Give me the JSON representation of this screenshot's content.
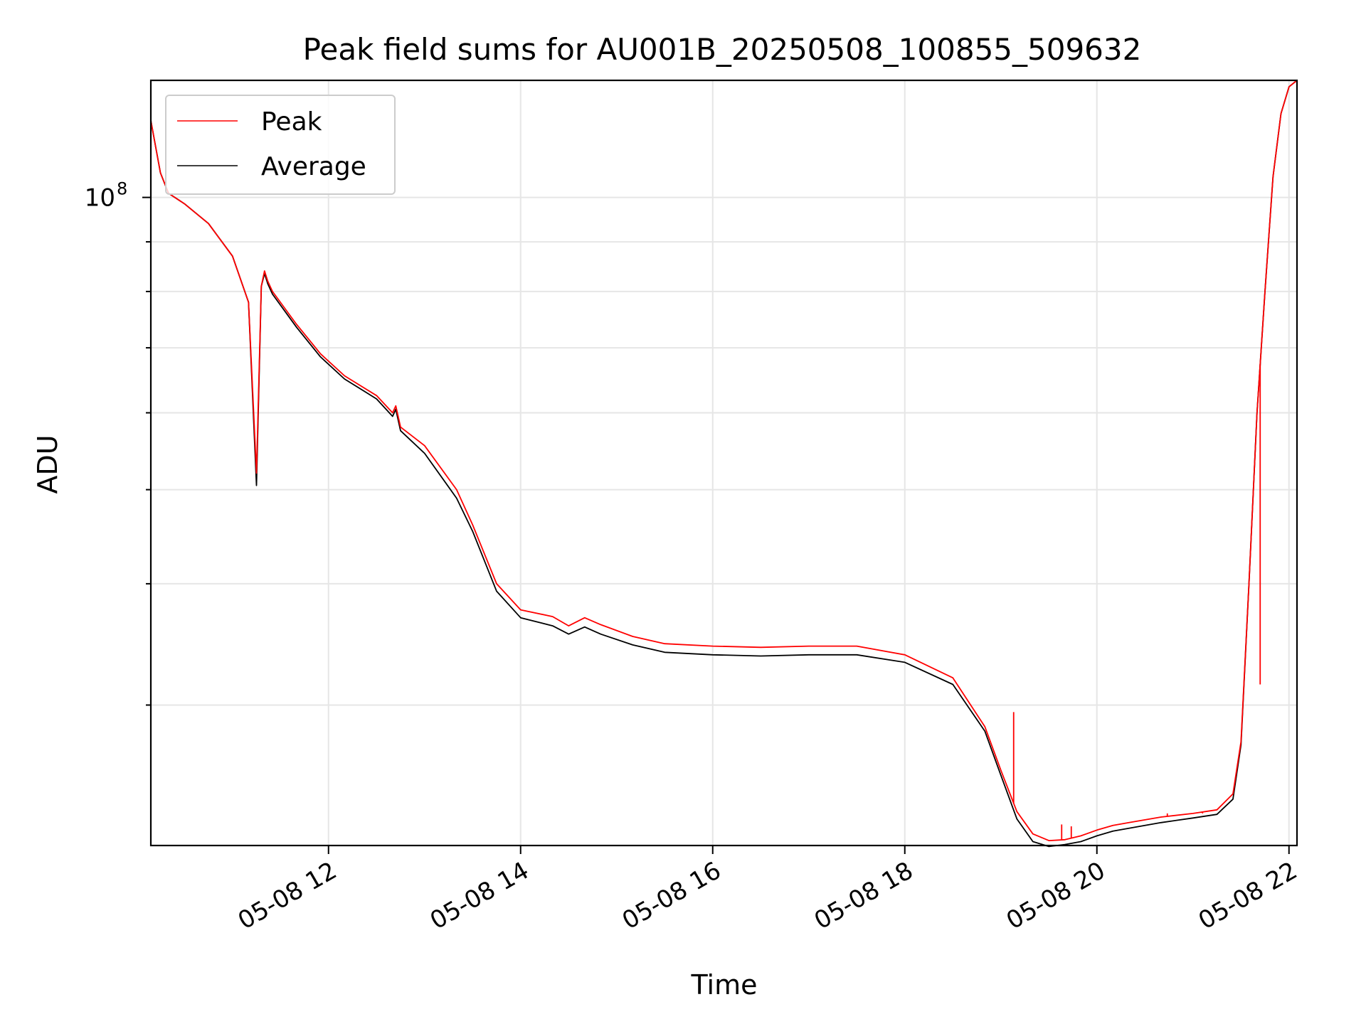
{
  "chart_data": {
    "type": "line",
    "title": "Peak field sums for AU001B_20250508_100855_509632",
    "xlabel": "Time",
    "ylabel": "ADU",
    "y_scale": "log",
    "ylim": [
      21500000,
      132000000
    ],
    "xlim": [
      "05-08 10:09",
      "05-08 22:05"
    ],
    "x_tick_labels": [
      "05-08 12",
      "05-08 14",
      "05-08 16",
      "05-08 18",
      "05-08 20",
      "05-08 22"
    ],
    "y_tick_labels": [
      {
        "base": "10",
        "exponent": "8"
      }
    ],
    "grid": true,
    "legend_position": "upper-left",
    "series": [
      {
        "name": "Peak",
        "color": "#ff0000",
        "x": [
          "05-08 10:09",
          "05-08 10:15",
          "05-08 10:20",
          "05-08 10:30",
          "05-08 10:45",
          "05-08 11:00",
          "05-08 11:10",
          "05-08 11:15",
          "05-08 11:18",
          "05-08 11:20",
          "05-08 11:22",
          "05-08 11:25",
          "05-08 11:40",
          "05-08 11:55",
          "05-08 12:10",
          "05-08 12:30",
          "05-08 12:40",
          "05-08 12:42",
          "05-08 12:45",
          "05-08 13:00",
          "05-08 13:20",
          "05-08 13:30",
          "05-08 13:45",
          "05-08 14:00",
          "05-08 14:20",
          "05-08 14:30",
          "05-08 14:40",
          "05-08 14:50",
          "05-08 15:10",
          "05-08 15:30",
          "05-08 16:00",
          "05-08 16:30",
          "05-08 17:00",
          "05-08 17:30",
          "05-08 18:00",
          "05-08 18:30",
          "05-08 18:50",
          "05-08 19:00",
          "05-08 19:10",
          "05-08 19:20",
          "05-08 19:30",
          "05-08 19:40",
          "05-08 19:50",
          "05-08 20:00",
          "05-08 20:10",
          "05-08 20:20",
          "05-08 20:40",
          "05-08 21:00",
          "05-08 21:15",
          "05-08 21:25",
          "05-08 21:30",
          "05-08 21:35",
          "05-08 21:40",
          "05-08 21:45",
          "05-08 21:50",
          "05-08 21:55",
          "05-08 22:00",
          "05-08 22:05"
        ],
        "y": [
          120000000,
          106000000,
          101000000,
          98500000,
          94000000,
          87000000,
          78000000,
          52000000,
          81000000,
          84000000,
          82000000,
          80000000,
          74000000,
          69000000,
          65500000,
          62500000,
          60000000,
          61000000,
          58000000,
          55500000,
          50000000,
          46000000,
          40000000,
          37600000,
          37000000,
          36200000,
          36900000,
          36300000,
          35300000,
          34700000,
          34500000,
          34400000,
          34500000,
          34500000,
          33800000,
          32000000,
          28500000,
          25700000,
          23300000,
          22100000,
          21750000,
          21800000,
          22000000,
          22300000,
          22550000,
          22700000,
          23000000,
          23200000,
          23400000,
          24300000,
          27500000,
          40000000,
          60000000,
          80000000,
          105000000,
          122000000,
          130000000,
          132000000
        ],
        "spikes": [
          {
            "x": "05-08 19:08",
            "y": 29500000
          },
          {
            "x": "05-08 19:38",
            "y": 22600000
          },
          {
            "x": "05-08 19:44",
            "y": 22500000
          },
          {
            "x": "05-08 20:44",
            "y": 23200000
          },
          {
            "x": "05-08 21:06",
            "y": 23200000
          },
          {
            "x": "05-08 21:42",
            "y": 31500000
          }
        ]
      },
      {
        "name": "Average",
        "color": "#000000",
        "x": [
          "05-08 10:09",
          "05-08 10:15",
          "05-08 10:20",
          "05-08 10:30",
          "05-08 10:45",
          "05-08 11:00",
          "05-08 11:10",
          "05-08 11:15",
          "05-08 11:18",
          "05-08 11:20",
          "05-08 11:22",
          "05-08 11:25",
          "05-08 11:40",
          "05-08 11:55",
          "05-08 12:10",
          "05-08 12:30",
          "05-08 12:40",
          "05-08 12:42",
          "05-08 12:45",
          "05-08 13:00",
          "05-08 13:20",
          "05-08 13:30",
          "05-08 13:45",
          "05-08 14:00",
          "05-08 14:20",
          "05-08 14:30",
          "05-08 14:40",
          "05-08 14:50",
          "05-08 15:10",
          "05-08 15:30",
          "05-08 16:00",
          "05-08 16:30",
          "05-08 17:00",
          "05-08 17:30",
          "05-08 18:00",
          "05-08 18:30",
          "05-08 18:50",
          "05-08 19:00",
          "05-08 19:10",
          "05-08 19:20",
          "05-08 19:30",
          "05-08 19:40",
          "05-08 19:50",
          "05-08 20:00",
          "05-08 20:10",
          "05-08 20:20",
          "05-08 20:40",
          "05-08 21:00",
          "05-08 21:15",
          "05-08 21:25",
          "05-08 21:30",
          "05-08 21:35",
          "05-08 21:40",
          "05-08 21:45",
          "05-08 21:50",
          "05-08 21:55",
          "05-08 22:00",
          "05-08 22:05"
        ],
        "y": [
          120000000,
          106000000,
          101000000,
          98500000,
          94000000,
          87000000,
          78000000,
          50500000,
          81000000,
          83500000,
          81500000,
          79500000,
          73500000,
          68500000,
          65000000,
          62000000,
          59500000,
          60500000,
          57500000,
          54500000,
          49000000,
          45300000,
          39300000,
          36900000,
          36200000,
          35500000,
          36100000,
          35500000,
          34600000,
          34000000,
          33800000,
          33700000,
          33800000,
          33800000,
          33200000,
          31500000,
          28200000,
          25400000,
          22900000,
          21700000,
          21450000,
          21550000,
          21700000,
          22000000,
          22250000,
          22400000,
          22700000,
          22950000,
          23150000,
          24000000,
          27300000,
          40000000,
          60000000,
          80000000,
          105000000,
          122000000,
          130000000,
          132000000
        ]
      }
    ]
  }
}
